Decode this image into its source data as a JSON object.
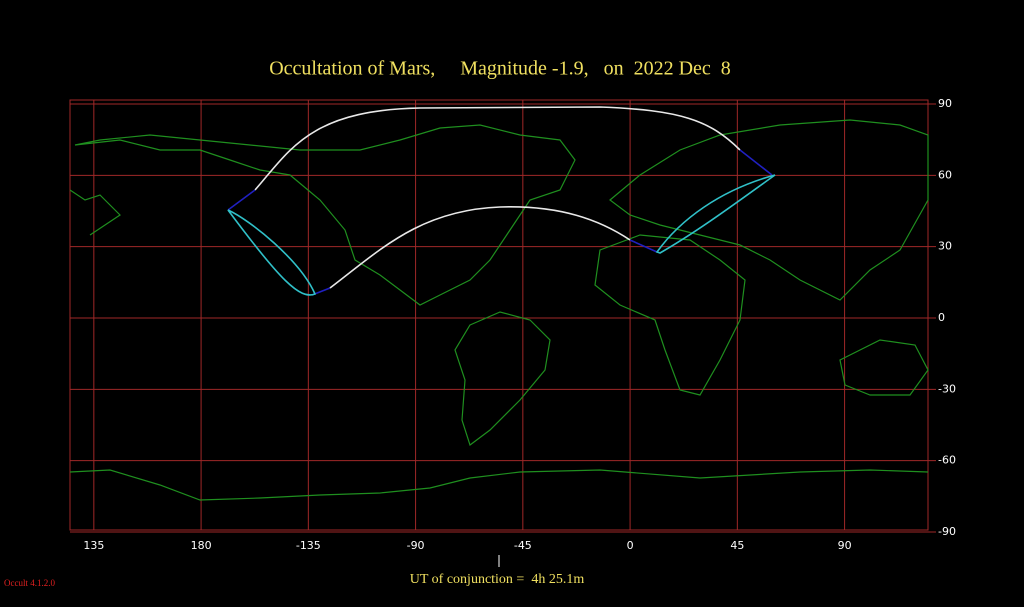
{
  "title": "Occultation of Mars,     Magnitude -1.9,   on  2022 Dec  8",
  "map": {
    "xlim": [
      -235,
      125
    ],
    "xticks": [
      {
        "value": -225,
        "label": "135"
      },
      {
        "value": -180,
        "label": "180"
      },
      -135,
      -90,
      -45,
      0,
      45,
      90
    ],
    "ylim": [
      -90,
      90
    ],
    "yticks": [
      90,
      60,
      30,
      0,
      -30,
      -60,
      -90
    ]
  },
  "footer": "UT of conjunction =  4h 25.1m",
  "version": "Occult 4.1.2.0"
}
